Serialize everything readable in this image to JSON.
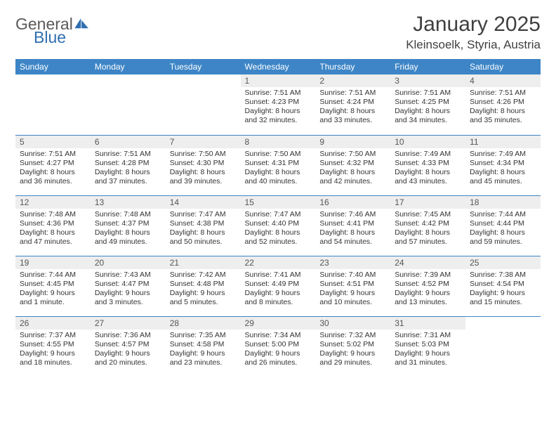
{
  "logo": {
    "text1": "General",
    "text2": "Blue",
    "color_general": "#5a5a5a",
    "color_blue": "#2f6fb0",
    "icon_color": "#2f6fb0"
  },
  "title": "January 2025",
  "location": "Kleinsoelk, Styria, Austria",
  "colors": {
    "header_bg": "#3d85c6",
    "header_fg": "#ffffff",
    "daynum_bg": "#eeeeee",
    "border": "#3d85c6"
  },
  "weekdays": [
    "Sunday",
    "Monday",
    "Tuesday",
    "Wednesday",
    "Thursday",
    "Friday",
    "Saturday"
  ],
  "weeks": [
    [
      null,
      null,
      null,
      {
        "n": "1",
        "sr": "7:51 AM",
        "ss": "4:23 PM",
        "dl": "8 hours and 32 minutes."
      },
      {
        "n": "2",
        "sr": "7:51 AM",
        "ss": "4:24 PM",
        "dl": "8 hours and 33 minutes."
      },
      {
        "n": "3",
        "sr": "7:51 AM",
        "ss": "4:25 PM",
        "dl": "8 hours and 34 minutes."
      },
      {
        "n": "4",
        "sr": "7:51 AM",
        "ss": "4:26 PM",
        "dl": "8 hours and 35 minutes."
      }
    ],
    [
      {
        "n": "5",
        "sr": "7:51 AM",
        "ss": "4:27 PM",
        "dl": "8 hours and 36 minutes."
      },
      {
        "n": "6",
        "sr": "7:51 AM",
        "ss": "4:28 PM",
        "dl": "8 hours and 37 minutes."
      },
      {
        "n": "7",
        "sr": "7:50 AM",
        "ss": "4:30 PM",
        "dl": "8 hours and 39 minutes."
      },
      {
        "n": "8",
        "sr": "7:50 AM",
        "ss": "4:31 PM",
        "dl": "8 hours and 40 minutes."
      },
      {
        "n": "9",
        "sr": "7:50 AM",
        "ss": "4:32 PM",
        "dl": "8 hours and 42 minutes."
      },
      {
        "n": "10",
        "sr": "7:49 AM",
        "ss": "4:33 PM",
        "dl": "8 hours and 43 minutes."
      },
      {
        "n": "11",
        "sr": "7:49 AM",
        "ss": "4:34 PM",
        "dl": "8 hours and 45 minutes."
      }
    ],
    [
      {
        "n": "12",
        "sr": "7:48 AM",
        "ss": "4:36 PM",
        "dl": "8 hours and 47 minutes."
      },
      {
        "n": "13",
        "sr": "7:48 AM",
        "ss": "4:37 PM",
        "dl": "8 hours and 49 minutes."
      },
      {
        "n": "14",
        "sr": "7:47 AM",
        "ss": "4:38 PM",
        "dl": "8 hours and 50 minutes."
      },
      {
        "n": "15",
        "sr": "7:47 AM",
        "ss": "4:40 PM",
        "dl": "8 hours and 52 minutes."
      },
      {
        "n": "16",
        "sr": "7:46 AM",
        "ss": "4:41 PM",
        "dl": "8 hours and 54 minutes."
      },
      {
        "n": "17",
        "sr": "7:45 AM",
        "ss": "4:42 PM",
        "dl": "8 hours and 57 minutes."
      },
      {
        "n": "18",
        "sr": "7:44 AM",
        "ss": "4:44 PM",
        "dl": "8 hours and 59 minutes."
      }
    ],
    [
      {
        "n": "19",
        "sr": "7:44 AM",
        "ss": "4:45 PM",
        "dl": "9 hours and 1 minute."
      },
      {
        "n": "20",
        "sr": "7:43 AM",
        "ss": "4:47 PM",
        "dl": "9 hours and 3 minutes."
      },
      {
        "n": "21",
        "sr": "7:42 AM",
        "ss": "4:48 PM",
        "dl": "9 hours and 5 minutes."
      },
      {
        "n": "22",
        "sr": "7:41 AM",
        "ss": "4:49 PM",
        "dl": "9 hours and 8 minutes."
      },
      {
        "n": "23",
        "sr": "7:40 AM",
        "ss": "4:51 PM",
        "dl": "9 hours and 10 minutes."
      },
      {
        "n": "24",
        "sr": "7:39 AM",
        "ss": "4:52 PM",
        "dl": "9 hours and 13 minutes."
      },
      {
        "n": "25",
        "sr": "7:38 AM",
        "ss": "4:54 PM",
        "dl": "9 hours and 15 minutes."
      }
    ],
    [
      {
        "n": "26",
        "sr": "7:37 AM",
        "ss": "4:55 PM",
        "dl": "9 hours and 18 minutes."
      },
      {
        "n": "27",
        "sr": "7:36 AM",
        "ss": "4:57 PM",
        "dl": "9 hours and 20 minutes."
      },
      {
        "n": "28",
        "sr": "7:35 AM",
        "ss": "4:58 PM",
        "dl": "9 hours and 23 minutes."
      },
      {
        "n": "29",
        "sr": "7:34 AM",
        "ss": "5:00 PM",
        "dl": "9 hours and 26 minutes."
      },
      {
        "n": "30",
        "sr": "7:32 AM",
        "ss": "5:02 PM",
        "dl": "9 hours and 29 minutes."
      },
      {
        "n": "31",
        "sr": "7:31 AM",
        "ss": "5:03 PM",
        "dl": "9 hours and 31 minutes."
      },
      null
    ]
  ],
  "labels": {
    "sunrise": "Sunrise:",
    "sunset": "Sunset:",
    "daylight": "Daylight:"
  }
}
